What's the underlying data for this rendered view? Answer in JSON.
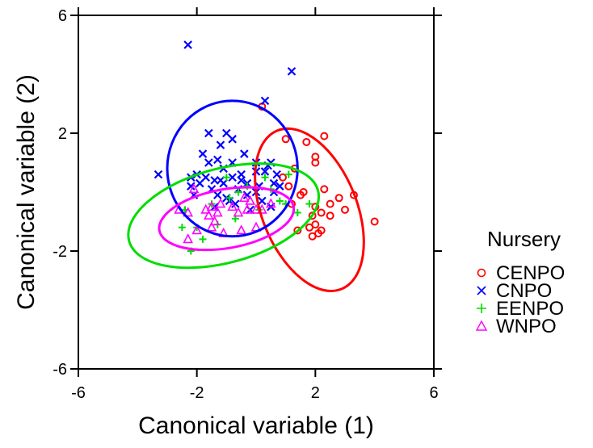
{
  "chart_data": {
    "type": "scatter",
    "xlabel": "Canonical variable (1)",
    "ylabel": "Canonical variable (2)",
    "xlim": [
      -6,
      6
    ],
    "ylim": [
      -6,
      6
    ],
    "xticks": [
      -6,
      -2,
      2,
      6
    ],
    "yticks": [
      -6,
      -2,
      2,
      6
    ],
    "grid": false,
    "legend_title": "Nursery",
    "legend_position": "right",
    "series": [
      {
        "name": "CENPO",
        "marker": "circle",
        "color": "#ff0000",
        "ellipse": {
          "center": [
            1.8,
            -0.6
          ],
          "radii": [
            1.6,
            2.9
          ],
          "angle_deg": 22
        },
        "points": [
          [
            1.1,
            0.2
          ],
          [
            1.6,
            0.0
          ],
          [
            2.3,
            0.1
          ],
          [
            3.3,
            -0.1
          ],
          [
            4.0,
            -1.0
          ],
          [
            2.0,
            -0.5
          ],
          [
            2.5,
            -0.8
          ],
          [
            2.8,
            -0.2
          ],
          [
            1.8,
            -1.2
          ],
          [
            2.2,
            -1.3
          ],
          [
            1.3,
            0.8
          ],
          [
            2.0,
            1.2
          ],
          [
            1.7,
            1.7
          ],
          [
            2.3,
            1.9
          ],
          [
            1.5,
            -0.1
          ],
          [
            2.5,
            -0.4
          ],
          [
            3.0,
            -0.6
          ],
          [
            2.0,
            1.0
          ],
          [
            1.9,
            -1.5
          ],
          [
            2.1,
            -1.4
          ],
          [
            2.0,
            -1.1
          ],
          [
            1.4,
            -1.3
          ],
          [
            0.2,
            2.9
          ],
          [
            1.9,
            -0.8
          ],
          [
            1.0,
            1.8
          ],
          [
            1.2,
            -0.4
          ],
          [
            0.9,
            0.5
          ],
          [
            2.2,
            -0.7
          ]
        ]
      },
      {
        "name": "CNPO",
        "marker": "x",
        "color": "#0000ff",
        "ellipse": {
          "center": [
            -0.8,
            0.8
          ],
          "radii": [
            2.2,
            2.3
          ],
          "angle_deg": 0
        },
        "points": [
          [
            -2.3,
            5.0
          ],
          [
            1.2,
            4.1
          ],
          [
            0.3,
            3.1
          ],
          [
            -1.0,
            2.0
          ],
          [
            -1.6,
            1.0
          ],
          [
            -1.2,
            1.6
          ],
          [
            -2.0,
            0.6
          ],
          [
            -3.3,
            0.6
          ],
          [
            -2.2,
            0.5
          ],
          [
            -1.7,
            0.5
          ],
          [
            -1.4,
            0.4
          ],
          [
            -1.1,
            0.3
          ],
          [
            -0.8,
            0.5
          ],
          [
            -0.5,
            0.4
          ],
          [
            0.0,
            0.7
          ],
          [
            0.3,
            0.7
          ],
          [
            0.5,
            1.0
          ],
          [
            0.6,
            0.3
          ],
          [
            0.0,
            0.0
          ],
          [
            -0.3,
            -0.1
          ],
          [
            -0.6,
            0.1
          ],
          [
            -1.0,
            -0.2
          ],
          [
            -1.3,
            -0.1
          ],
          [
            -1.5,
            0.1
          ],
          [
            -1.9,
            0.3
          ],
          [
            -2.1,
            -0.1
          ],
          [
            -1.6,
            2.0
          ],
          [
            -1.3,
            1.1
          ],
          [
            -0.8,
            1.0
          ],
          [
            -0.3,
            0.3
          ],
          [
            0.2,
            -0.3
          ],
          [
            0.5,
            -0.5
          ],
          [
            -0.4,
            1.3
          ],
          [
            0.4,
            0.9
          ],
          [
            0.8,
            0.2
          ],
          [
            -0.7,
            -0.4
          ],
          [
            -0.2,
            -0.6
          ],
          [
            0.7,
            0.6
          ],
          [
            -1.1,
            0.8
          ],
          [
            -2.2,
            0.2
          ],
          [
            -1.8,
            1.3
          ],
          [
            -0.8,
            1.8
          ],
          [
            0.0,
            1.0
          ],
          [
            0.6,
            0.0
          ],
          [
            -0.5,
            0.6
          ],
          [
            -1.4,
            -0.5
          ],
          [
            -0.9,
            -0.3
          ],
          [
            0.1,
            0.2
          ],
          [
            -1.2,
            0.4
          ]
        ]
      },
      {
        "name": "EENPO",
        "marker": "plus",
        "color": "#00dd00",
        "ellipse": {
          "center": [
            -1.1,
            -0.8
          ],
          "radii": [
            3.3,
            1.6
          ],
          "angle_deg": 15
        },
        "points": [
          [
            -2.2,
            -2.0
          ],
          [
            -2.4,
            -0.6
          ],
          [
            -1.0,
            0.5
          ],
          [
            -0.6,
            0.0
          ],
          [
            0.3,
            0.5
          ],
          [
            -1.8,
            -1.6
          ],
          [
            -1.3,
            -1.1
          ],
          [
            -0.7,
            -0.9
          ],
          [
            0.1,
            -0.6
          ],
          [
            0.8,
            -0.3
          ],
          [
            1.4,
            -0.7
          ],
          [
            1.8,
            -0.4
          ],
          [
            -1.5,
            -0.4
          ],
          [
            -0.3,
            0.2
          ],
          [
            0.5,
            0.1
          ],
          [
            1.1,
            0.6
          ],
          [
            -2.0,
            -1.2
          ],
          [
            -0.9,
            -0.2
          ],
          [
            -2.5,
            -1.2
          ],
          [
            1.0,
            -0.4
          ]
        ]
      },
      {
        "name": "WNPO",
        "marker": "triangle",
        "color": "#ff00ff",
        "ellipse": {
          "center": [
            -1.0,
            -0.9
          ],
          "radii": [
            2.3,
            1.0
          ],
          "angle_deg": 10
        },
        "points": [
          [
            -2.1,
            0.1
          ],
          [
            -1.5,
            -0.5
          ],
          [
            -1.3,
            -0.7
          ],
          [
            -0.8,
            -0.5
          ],
          [
            -0.3,
            -0.6
          ],
          [
            0.2,
            -0.6
          ],
          [
            -1.6,
            -0.8
          ],
          [
            -2.0,
            -1.3
          ],
          [
            -1.1,
            -1.4
          ],
          [
            -0.5,
            -1.3
          ],
          [
            0.0,
            -1.2
          ],
          [
            -2.3,
            -1.6
          ],
          [
            -1.5,
            -1.2
          ],
          [
            -0.2,
            -0.3
          ],
          [
            0.5,
            -0.4
          ],
          [
            -1.7,
            -0.6
          ],
          [
            -1.2,
            -0.4
          ],
          [
            -2.6,
            -0.6
          ],
          [
            0.0,
            -0.6
          ],
          [
            -0.6,
            -0.7
          ],
          [
            -1.4,
            -1.0
          ],
          [
            -2.3,
            -0.7
          ],
          [
            -0.4,
            -0.2
          ]
        ]
      }
    ]
  }
}
